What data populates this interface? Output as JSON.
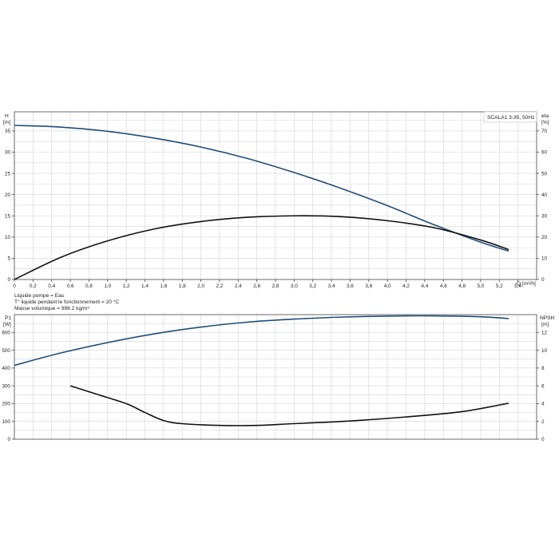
{
  "chart_data": [
    {
      "type": "line",
      "title": "SCALA1 3-35, 50Hz",
      "xlabel": "Q [m³/h]",
      "ylabel_left_top": "H",
      "ylabel_left_bottom": "[m]",
      "ylabel_right_top": "eta",
      "ylabel_right_bottom": "[%]",
      "x_ticks": [
        "0",
        "0,2",
        "0,4",
        "0,6",
        "0,8",
        "1,0",
        "1,2",
        "1,4",
        "1,6",
        "1,8",
        "2,0",
        "2,2",
        "2,4",
        "2,6",
        "2,8",
        "3,0",
        "3,2",
        "3,4",
        "3,6",
        "3,8",
        "4,0",
        "4,2",
        "4,4",
        "4,6",
        "4,8",
        "5,0",
        "5,2",
        "5,4"
      ],
      "y_left_ticks": [
        "0",
        "5",
        "10",
        "15",
        "20",
        "25",
        "30",
        "35"
      ],
      "y_right_ticks": [
        "0",
        "10",
        "20",
        "30",
        "40",
        "50",
        "60",
        "70"
      ],
      "xlim": [
        0,
        5.6
      ],
      "ylim_left": [
        0,
        39.5
      ],
      "ylim_right": [
        0,
        79
      ],
      "grid": true,
      "series": [
        {
          "axis": "left",
          "color": "#1f4e79",
          "x": [
            0,
            0.5,
            1.0,
            1.5,
            2.0,
            2.5,
            3.0,
            3.5,
            4.0,
            4.5,
            5.0,
            5.3
          ],
          "y": [
            36.3,
            35.9,
            34.9,
            33.3,
            31.2,
            28.5,
            25.2,
            21.5,
            17.4,
            12.9,
            8.8,
            6.7
          ]
        },
        {
          "axis": "right",
          "color": "#111111",
          "x": [
            0,
            0.5,
            1.0,
            1.5,
            2.0,
            2.5,
            3.0,
            3.5,
            4.0,
            4.5,
            5.0,
            5.3
          ],
          "y": [
            0,
            10.5,
            18.2,
            23.8,
            27.3,
            29.3,
            30.0,
            29.6,
            27.7,
            24.4,
            18.6,
            14.1
          ]
        }
      ]
    },
    {
      "type": "line",
      "xlabel": "",
      "ylabel_left_top": "P1",
      "ylabel_left_bottom": "[W]",
      "ylabel_right_top": "NPSH",
      "ylabel_right_bottom": "[m]",
      "x_ticks": [],
      "y_left_ticks": [
        "0",
        "100",
        "200",
        "300",
        "400",
        "500",
        "600"
      ],
      "y_right_ticks": [
        "0",
        "2",
        "4",
        "6",
        "8",
        "10",
        "12"
      ],
      "xlim": [
        0,
        5.6
      ],
      "ylim_left": [
        0,
        700
      ],
      "ylim_right": [
        0,
        14
      ],
      "grid": true,
      "series": [
        {
          "axis": "left",
          "color": "#1f4e79",
          "x": [
            0,
            0.5,
            1.0,
            1.5,
            2.0,
            2.5,
            3.0,
            3.5,
            4.0,
            4.5,
            5.0,
            5.3
          ],
          "y": [
            415,
            485,
            543,
            592,
            630,
            658,
            675,
            686,
            692,
            693,
            688,
            678
          ]
        },
        {
          "axis": "right",
          "color": "#111111",
          "x": [
            0.6,
            0.9,
            1.2,
            1.4,
            1.6,
            1.8,
            2.2,
            2.6,
            3.0,
            3.6,
            4.2,
            4.8,
            5.3
          ],
          "y": [
            6.0,
            5.0,
            4.0,
            3.0,
            2.1,
            1.75,
            1.55,
            1.55,
            1.75,
            2.05,
            2.5,
            3.1,
            4.05
          ]
        }
      ]
    }
  ],
  "notes": [
    "Liquide pompé = Eau",
    "T° liquide pendant le fonctionnement = 20 °C",
    "Masse volumique = 998.2 kg/m³"
  ]
}
